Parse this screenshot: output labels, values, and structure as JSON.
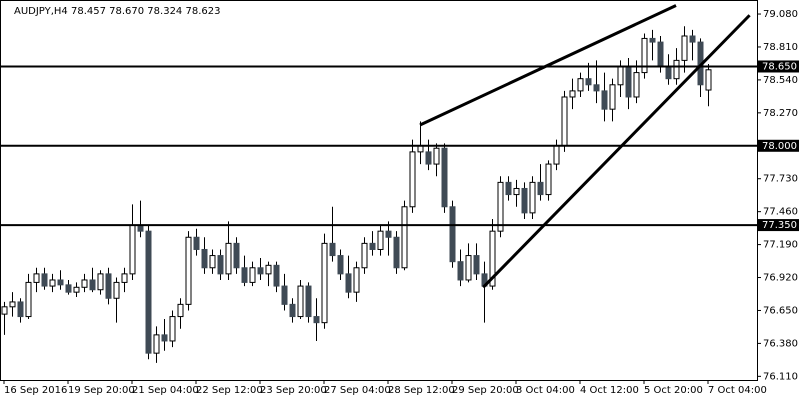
{
  "chart_data": {
    "type": "candlestick",
    "title": "AUDJPY,H4  78.457 78.670 78.324 78.623",
    "categories": [
      "16 Sep 2016",
      null,
      null,
      null,
      null,
      null,
      null,
      null,
      "19 Sep 20:00",
      null,
      null,
      null,
      null,
      null,
      null,
      null,
      "21 Sep 04:00",
      null,
      null,
      null,
      null,
      null,
      null,
      null,
      "22 Sep 12:00",
      null,
      null,
      null,
      null,
      null,
      null,
      null,
      "23 Sep 20:00",
      null,
      null,
      null,
      null,
      null,
      null,
      null,
      "27 Sep 04:00",
      null,
      null,
      null,
      null,
      null,
      null,
      null,
      "28 Sep 12:00",
      null,
      null,
      null,
      null,
      null,
      null,
      null,
      "29 Sep 20:00",
      null,
      null,
      null,
      null,
      null,
      null,
      null,
      "3 Oct 04:00",
      null,
      null,
      null,
      null,
      null,
      null,
      null,
      "4 Oct 12:00",
      null,
      null,
      null,
      null,
      null,
      null,
      null,
      "5 Oct 20:00",
      null,
      null,
      null,
      null,
      null,
      null,
      null,
      "7 Oct 04:00"
    ],
    "open": [
      76.62,
      76.68,
      76.72,
      76.6,
      76.88,
      76.95,
      76.85,
      76.9,
      76.86,
      76.8,
      76.84,
      76.9,
      76.82,
      76.95,
      76.75,
      76.88,
      76.95,
      77.35,
      77.3,
      76.3,
      76.45,
      76.4,
      76.6,
      76.7,
      77.25,
      77.15,
      77.0,
      77.1,
      76.95,
      77.2,
      77.0,
      76.88,
      77.0,
      76.95,
      77.02,
      76.85,
      76.7,
      76.6,
      76.85,
      76.6,
      76.55,
      77.2,
      77.1,
      76.95,
      76.8,
      77.0,
      77.2,
      77.15,
      77.3,
      77.25,
      77.0,
      77.5,
      77.95,
      77.95,
      77.85,
      77.98,
      77.5,
      77.05,
      76.9,
      77.1,
      76.95,
      76.85,
      77.3,
      77.7,
      77.6,
      77.65,
      77.45,
      77.7,
      77.6,
      77.85,
      78.0,
      78.4,
      78.45,
      78.55,
      78.5,
      78.45,
      78.3,
      78.5,
      78.65,
      78.4,
      78.6,
      78.88,
      78.85,
      78.65,
      78.55,
      78.7,
      78.9,
      78.85,
      78.457
    ],
    "high": [
      76.72,
      76.8,
      76.75,
      76.95,
      77.0,
      77.0,
      76.95,
      76.98,
      76.9,
      76.88,
      76.95,
      77.0,
      76.98,
      77.0,
      76.92,
      77.0,
      77.52,
      77.55,
      77.35,
      76.52,
      76.58,
      76.65,
      76.75,
      77.3,
      77.32,
      77.25,
      77.15,
      77.15,
      77.38,
      77.25,
      77.1,
      77.05,
      77.08,
      77.05,
      77.05,
      76.95,
      76.75,
      76.9,
      76.88,
      76.75,
      77.28,
      77.5,
      77.15,
      77.1,
      77.05,
      77.25,
      77.3,
      77.35,
      77.38,
      77.3,
      77.55,
      78.05,
      78.2,
      78.05,
      78.02,
      78.02,
      77.55,
      77.15,
      77.2,
      77.2,
      77.05,
      77.4,
      77.75,
      77.75,
      77.72,
      77.7,
      77.75,
      77.85,
      77.88,
      78.05,
      78.45,
      78.55,
      78.6,
      78.68,
      78.7,
      78.6,
      78.55,
      78.7,
      78.72,
      78.7,
      78.92,
      78.95,
      78.9,
      78.75,
      78.8,
      78.98,
      78.95,
      78.88,
      78.67
    ],
    "low": [
      76.45,
      76.6,
      76.55,
      76.58,
      76.8,
      76.82,
      76.8,
      76.82,
      76.78,
      76.76,
      76.8,
      76.8,
      76.78,
      76.7,
      76.55,
      76.8,
      76.9,
      77.25,
      76.25,
      76.22,
      76.32,
      76.35,
      76.5,
      76.65,
      77.1,
      76.95,
      76.95,
      76.9,
      76.9,
      76.95,
      76.85,
      76.85,
      76.9,
      76.85,
      76.8,
      76.65,
      76.55,
      76.58,
      76.55,
      76.4,
      76.5,
      77.05,
      76.9,
      76.75,
      76.72,
      76.95,
      77.1,
      77.1,
      77.1,
      76.95,
      76.98,
      77.45,
      77.85,
      77.8,
      77.75,
      77.45,
      77.0,
      76.85,
      76.88,
      76.9,
      76.55,
      76.82,
      77.25,
      77.55,
      77.5,
      77.4,
      77.4,
      77.55,
      77.55,
      77.8,
      77.95,
      78.3,
      78.4,
      78.45,
      78.35,
      78.2,
      78.2,
      78.4,
      78.3,
      78.35,
      78.55,
      78.7,
      78.6,
      78.5,
      78.5,
      78.6,
      78.7,
      78.4,
      78.324
    ],
    "close": [
      76.68,
      76.72,
      76.6,
      76.88,
      76.95,
      76.85,
      76.9,
      76.86,
      76.8,
      76.84,
      76.9,
      76.82,
      76.95,
      76.75,
      76.88,
      76.95,
      77.35,
      77.3,
      76.3,
      76.45,
      76.4,
      76.6,
      76.7,
      77.25,
      77.15,
      77.0,
      77.1,
      76.95,
      77.2,
      77.0,
      76.88,
      77.0,
      76.95,
      77.02,
      76.85,
      76.7,
      76.6,
      76.85,
      76.6,
      76.55,
      77.2,
      77.1,
      76.95,
      76.8,
      77.0,
      77.2,
      77.15,
      77.3,
      77.25,
      77.0,
      77.5,
      77.95,
      78.0,
      77.85,
      77.98,
      77.5,
      77.05,
      76.9,
      77.1,
      76.95,
      76.85,
      77.3,
      77.7,
      77.6,
      77.65,
      77.45,
      77.7,
      77.6,
      77.85,
      78.0,
      78.4,
      78.45,
      78.55,
      78.5,
      78.45,
      78.3,
      78.5,
      78.65,
      78.4,
      78.6,
      78.88,
      78.85,
      78.65,
      78.55,
      78.7,
      78.9,
      78.85,
      78.5,
      78.623
    ],
    "up_color": "#ffffff",
    "down_color": "#3f4a55",
    "ylim": [
      76.08,
      79.195
    ],
    "yticks": [
      {
        "value": 79.08,
        "label": "79.080"
      },
      {
        "value": 78.81,
        "label": "78.810"
      },
      {
        "value": 78.54,
        "label": "78.540"
      },
      {
        "value": 78.27,
        "label": "78.270"
      },
      {
        "value": 77.73,
        "label": "77.730"
      },
      {
        "value": 77.46,
        "label": "77.460"
      },
      {
        "value": 77.19,
        "label": "77.190"
      },
      {
        "value": 76.92,
        "label": "76.920"
      },
      {
        "value": 76.65,
        "label": "76.650"
      },
      {
        "value": 76.38,
        "label": "76.380"
      },
      {
        "value": 76.11,
        "label": "76.110"
      }
    ],
    "hlines": [
      {
        "value": 78.65,
        "label": "78.650"
      },
      {
        "value": 78.0,
        "label": "78.000"
      },
      {
        "value": 77.35,
        "label": "77.350"
      }
    ],
    "trendlines": [
      {
        "x": [
          52,
          84
        ],
        "y": [
          78.17,
          79.15
        ]
      },
      {
        "x": [
          59.9,
          93.2
        ],
        "y": [
          76.84,
          79.07
        ]
      }
    ]
  }
}
